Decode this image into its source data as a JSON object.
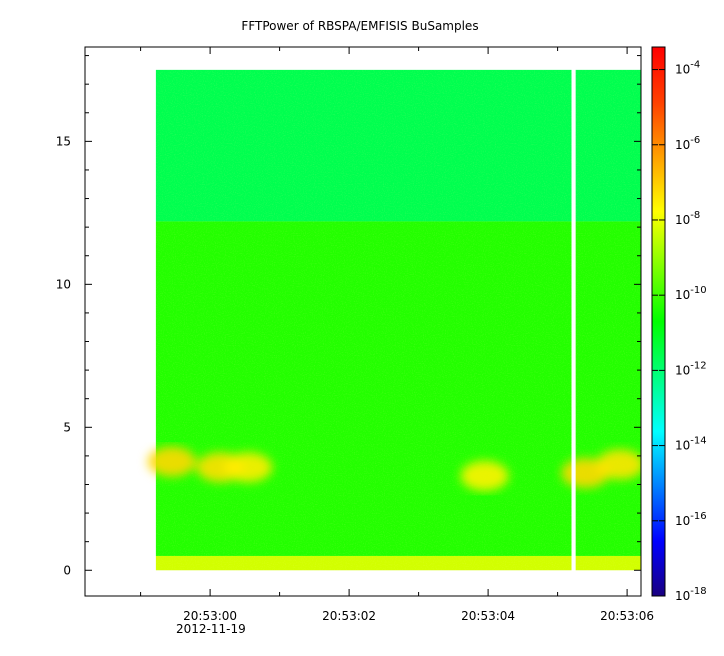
{
  "chart_data": {
    "type": "heatmap",
    "title": "FFTPower of RBSPA/EMFISIS  BuSamples",
    "xlabel": "",
    "ylabel": "",
    "x_ticks": [
      "20:53:00",
      "20:53:02",
      "20:53:04",
      "20:53:06"
    ],
    "x_date_label": "2012-11-19",
    "x_range_seconds": [
      -1.8,
      6.2
    ],
    "data_x_extent_seconds": [
      -0.78,
      6.2
    ],
    "data_gap_seconds": [
      5.2,
      5.26
    ],
    "ylim": [
      -0.9,
      18.3
    ],
    "y_ticks": [
      0,
      5,
      10,
      15
    ],
    "data_y_extent": [
      0,
      17.5
    ],
    "grid": false,
    "colorbar": {
      "scale": "log",
      "range_exponents": [
        -18,
        -3.4
      ],
      "tick_exponents": [
        -18,
        -16,
        -14,
        -12,
        -10,
        -8,
        -6,
        -4
      ],
      "colors": [
        "#1a0080",
        "#0000ff",
        "#0080ff",
        "#00ffff",
        "#00ff80",
        "#00ff00",
        "#80ff00",
        "#ffff00",
        "#ffa000",
        "#ff4000",
        "#ff0000"
      ]
    },
    "background_levels": {
      "upper_band": {
        "y_range": [
          12.2,
          17.5
        ],
        "log10_power": -11.6
      },
      "middle_band": {
        "y_range": [
          0.5,
          12.2
        ],
        "log10_power": -10.3
      },
      "bottom_band": {
        "y_range": [
          0,
          0.5
        ],
        "log10_power": -8.3
      }
    },
    "enhancements": [
      {
        "t": -0.55,
        "f": 3.8,
        "log10_power": -7.2
      },
      {
        "t": 0.15,
        "f": 3.6,
        "log10_power": -7.3
      },
      {
        "t": 0.55,
        "f": 3.6,
        "log10_power": -7.5
      },
      {
        "t": 3.95,
        "f": 3.3,
        "log10_power": -7.6
      },
      {
        "t": 5.4,
        "f": 3.4,
        "log10_power": -7.2
      },
      {
        "t": 5.9,
        "f": 3.7,
        "log10_power": -7.4
      }
    ]
  }
}
